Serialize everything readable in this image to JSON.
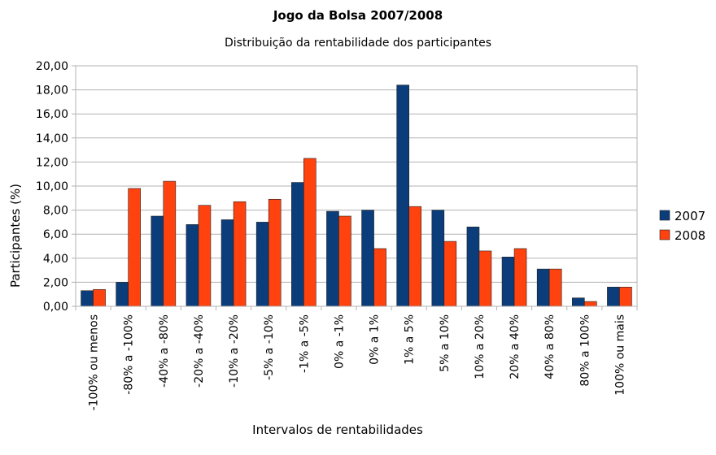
{
  "chart_data": {
    "type": "bar",
    "title": "Jogo da Bolsa 2007/2008",
    "subtitle": "Distribuição da rentabilidade dos participantes",
    "xlabel": "Intervalos de rentabilidades",
    "ylabel": "Participantes (%)",
    "ylim": [
      0,
      20
    ],
    "yticks": [
      0,
      2,
      4,
      6,
      8,
      10,
      12,
      14,
      16,
      18,
      20
    ],
    "ytick_labels": [
      "0,00",
      "2,00",
      "4,00",
      "6,00",
      "8,00",
      "10,00",
      "12,00",
      "14,00",
      "16,00",
      "18,00",
      "20,00"
    ],
    "grid": true,
    "legend_position": "right",
    "categories": [
      "-100% ou menos",
      "-80% a -100%",
      "-40% a -80%",
      "-20% a -40%",
      "-10% a -20%",
      "-5% a -10%",
      "-1% a -5%",
      "0% a -1%",
      "0% a 1%",
      "1% a 5%",
      "5% a 10%",
      "10% a 20%",
      "20% a 40%",
      "40% a 80%",
      "80% a 100%",
      "100% ou mais"
    ],
    "series": [
      {
        "name": "2007",
        "color": "#0a3d7a",
        "values": [
          1.3,
          2.0,
          7.5,
          6.8,
          7.2,
          7.0,
          10.3,
          7.9,
          8.0,
          18.4,
          8.0,
          6.6,
          4.1,
          3.1,
          0.7,
          1.6
        ]
      },
      {
        "name": "2008",
        "color": "#ff420e",
        "values": [
          1.4,
          9.8,
          10.4,
          8.4,
          8.7,
          8.9,
          12.3,
          7.5,
          4.8,
          8.3,
          5.4,
          4.6,
          4.8,
          3.1,
          0.4,
          1.6
        ]
      }
    ]
  }
}
